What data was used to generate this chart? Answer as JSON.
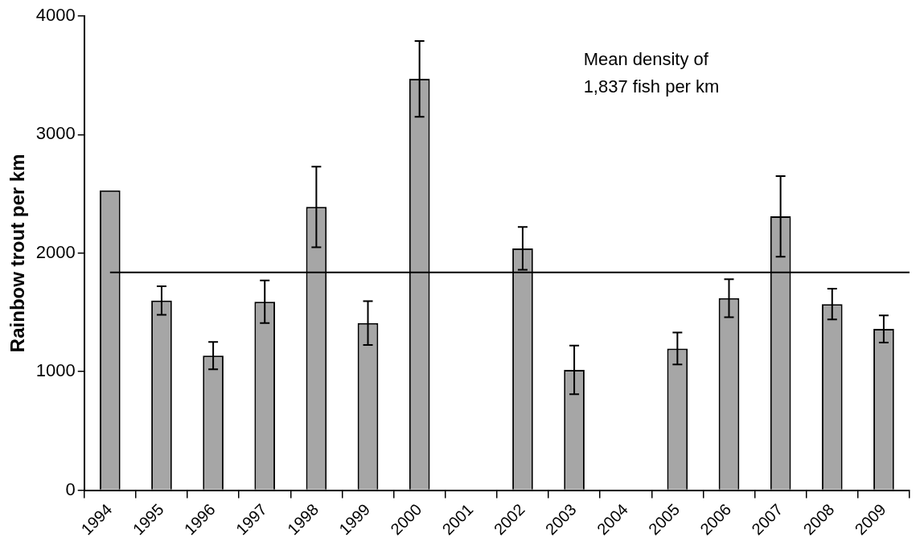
{
  "chart_data": {
    "type": "bar",
    "ylabel": "Rainbow trout per km",
    "categories": [
      "1994",
      "1995",
      "1996",
      "1997",
      "1998",
      "1999",
      "2000",
      "2001",
      "2002",
      "2003",
      "2004",
      "2005",
      "2006",
      "2007",
      "2008",
      "2009"
    ],
    "values": [
      2530,
      1600,
      1135,
      1590,
      2390,
      1410,
      3470,
      null,
      2040,
      1015,
      null,
      1195,
      1620,
      2310,
      1570,
      1360
    ],
    "errors": [
      null,
      120,
      115,
      180,
      340,
      185,
      320,
      null,
      180,
      205,
      null,
      135,
      160,
      340,
      130,
      115
    ],
    "color": "#a6a6a6",
    "ylim": [
      0,
      4000
    ],
    "yticks": [
      0,
      1000,
      2000,
      3000,
      4000
    ],
    "grid": false,
    "legend": false,
    "ref_lines": [
      {
        "axis": "y",
        "value": 1837,
        "color": "#000000"
      }
    ],
    "annotations": [
      "Mean density of\n1,837 fish per km"
    ]
  }
}
